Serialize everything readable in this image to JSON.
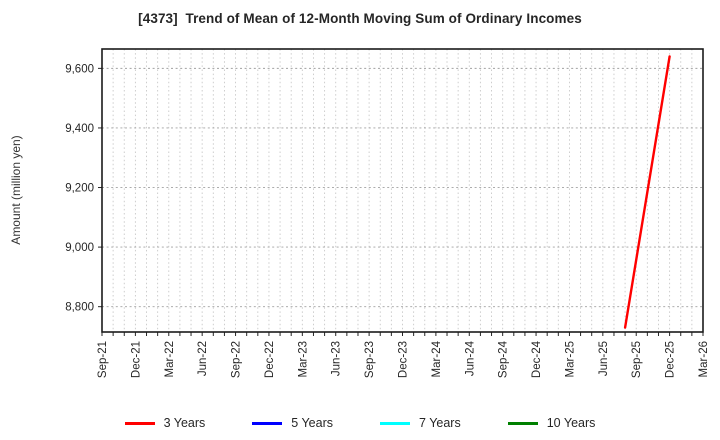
{
  "header": {
    "title": "[4373]  Trend of Mean of 12-Month Moving Sum of Ordinary Incomes"
  },
  "chart_data": {
    "type": "line",
    "title": "[4373]  Trend of Mean of 12-Month Moving Sum of Ordinary Incomes",
    "xlabel": "",
    "ylabel": "Amount (million yen)",
    "categories": [
      "Sep-21",
      "Dec-21",
      "Mar-22",
      "Jun-22",
      "Sep-22",
      "Dec-22",
      "Mar-23",
      "Jun-23",
      "Sep-23",
      "Dec-23",
      "Mar-24",
      "Jun-24",
      "Sep-24",
      "Dec-24",
      "Mar-25",
      "Jun-25",
      "Sep-25",
      "Dec-25",
      "Mar-26"
    ],
    "months_per_category": 3,
    "yticks": [
      8800,
      9000,
      9200,
      9400,
      9600
    ],
    "ylim": [
      8715,
      9665
    ],
    "grid": true,
    "legend_position": "bottom-center",
    "series": [
      {
        "name": "3 Years",
        "color": "#ff0000",
        "points": [
          {
            "x": "Aug-25",
            "month_offset": 47,
            "y": 8730
          },
          {
            "x": "Dec-25",
            "month_offset": 51,
            "y": 9640
          }
        ]
      },
      {
        "name": "5 Years",
        "color": "#0000ff",
        "points": []
      },
      {
        "name": "7 Years",
        "color": "#00ffff",
        "points": []
      },
      {
        "name": "10 Years",
        "color": "#008000",
        "points": []
      }
    ]
  }
}
